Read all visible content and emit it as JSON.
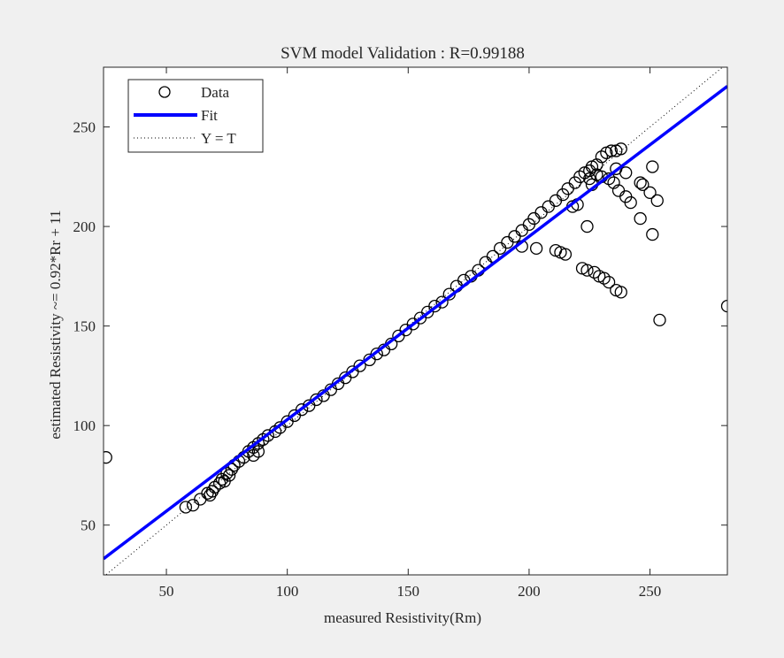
{
  "chart_data": {
    "type": "scatter",
    "title": "SVM model Validation : R=0.99188",
    "xlabel": "measured Resistivity(Rm)",
    "ylabel": "estimated Resistivity ~= 0.92*Rr + 11",
    "xlim": [
      24,
      282
    ],
    "ylim": [
      25,
      280
    ],
    "xticks": [
      50,
      100,
      150,
      200,
      250
    ],
    "yticks": [
      50,
      100,
      150,
      200,
      250
    ],
    "grid": false,
    "legend_position": "top-left",
    "legend": [
      "Data",
      "Fit",
      "Y = T"
    ],
    "fit": {
      "slope": 0.92,
      "intercept": 11
    },
    "series": [
      {
        "name": "Data",
        "type": "scatter",
        "points": [
          [
            25,
            84
          ],
          [
            58,
            59
          ],
          [
            61,
            60
          ],
          [
            64,
            63
          ],
          [
            67,
            66
          ],
          [
            68,
            65
          ],
          [
            69,
            67
          ],
          [
            70,
            69
          ],
          [
            72,
            71
          ],
          [
            73,
            73
          ],
          [
            74,
            72
          ],
          [
            75,
            76
          ],
          [
            76,
            75
          ],
          [
            77,
            78
          ],
          [
            78,
            80
          ],
          [
            80,
            82
          ],
          [
            82,
            84
          ],
          [
            84,
            87
          ],
          [
            86,
            85
          ],
          [
            86,
            89
          ],
          [
            88,
            91
          ],
          [
            88,
            87
          ],
          [
            90,
            93
          ],
          [
            92,
            95
          ],
          [
            95,
            97
          ],
          [
            97,
            99
          ],
          [
            100,
            102
          ],
          [
            103,
            105
          ],
          [
            106,
            108
          ],
          [
            109,
            110
          ],
          [
            112,
            113
          ],
          [
            115,
            115
          ],
          [
            118,
            118
          ],
          [
            121,
            121
          ],
          [
            124,
            124
          ],
          [
            127,
            127
          ],
          [
            130,
            130
          ],
          [
            134,
            133
          ],
          [
            137,
            136
          ],
          [
            140,
            138
          ],
          [
            143,
            141
          ],
          [
            146,
            145
          ],
          [
            149,
            148
          ],
          [
            152,
            151
          ],
          [
            155,
            154
          ],
          [
            158,
            157
          ],
          [
            161,
            160
          ],
          [
            164,
            162
          ],
          [
            167,
            166
          ],
          [
            170,
            170
          ],
          [
            173,
            173
          ],
          [
            176,
            175
          ],
          [
            179,
            178
          ],
          [
            182,
            182
          ],
          [
            185,
            185
          ],
          [
            188,
            189
          ],
          [
            191,
            192
          ],
          [
            194,
            195
          ],
          [
            197,
            198
          ],
          [
            200,
            201
          ],
          [
            202,
            204
          ],
          [
            205,
            207
          ],
          [
            208,
            210
          ],
          [
            211,
            213
          ],
          [
            214,
            216
          ],
          [
            216,
            219
          ],
          [
            219,
            222
          ],
          [
            221,
            225
          ],
          [
            223,
            227
          ],
          [
            225,
            228
          ],
          [
            226,
            230
          ],
          [
            228,
            231
          ],
          [
            230,
            235
          ],
          [
            232,
            237
          ],
          [
            234,
            238
          ],
          [
            236,
            238
          ],
          [
            238,
            239
          ],
          [
            236,
            229
          ],
          [
            240,
            227
          ],
          [
            246,
            222
          ],
          [
            247,
            221
          ],
          [
            251,
            230
          ],
          [
            250,
            217
          ],
          [
            253,
            213
          ],
          [
            240,
            215
          ],
          [
            242,
            212
          ],
          [
            237,
            218
          ],
          [
            235,
            222
          ],
          [
            233,
            224
          ],
          [
            228,
            226
          ],
          [
            225,
            224
          ],
          [
            230,
            225
          ],
          [
            226,
            221
          ],
          [
            224,
            200
          ],
          [
            222,
            179
          ],
          [
            224,
            178
          ],
          [
            227,
            177
          ],
          [
            229,
            175
          ],
          [
            231,
            174
          ],
          [
            233,
            172
          ],
          [
            236,
            168
          ],
          [
            238,
            167
          ],
          [
            218,
            210
          ],
          [
            220,
            211
          ],
          [
            215,
            186
          ],
          [
            213,
            187
          ],
          [
            211,
            188
          ],
          [
            203,
            189
          ],
          [
            197,
            190
          ],
          [
            246,
            204
          ],
          [
            251,
            196
          ],
          [
            254,
            153
          ],
          [
            282,
            160
          ]
        ]
      }
    ]
  }
}
